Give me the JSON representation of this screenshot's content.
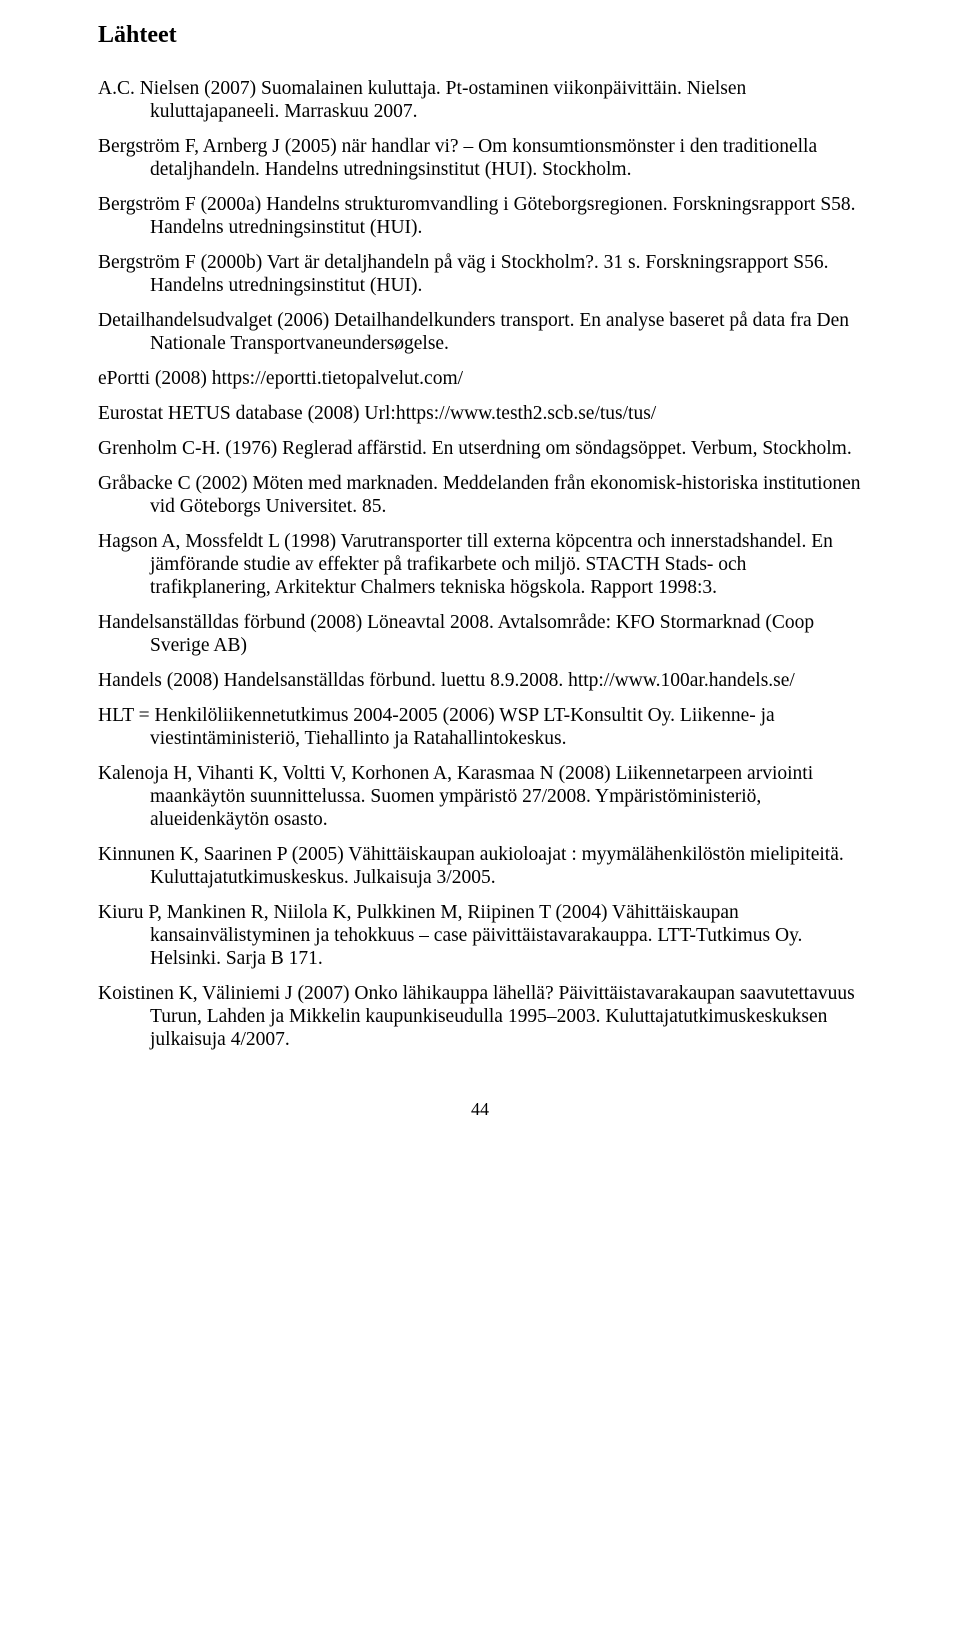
{
  "heading": "Lähteet",
  "page_number": "44",
  "refs": [
    "A.C. Nielsen (2007) Suomalainen kuluttaja. Pt-ostaminen viikonpäivittäin. Nielsen kuluttajapaneeli. Marraskuu 2007.",
    "Bergström F, Arnberg J (2005) när handlar vi? – Om konsumtionsmönster i den traditionella detaljhandeln. Handelns utredningsinstitut (HUI). Stockholm.",
    "Bergström F (2000a) Handelns strukturomvandling i Göteborgsregionen. Forskningsrapport S58. Handelns utredningsinstitut (HUI).",
    "Bergström F (2000b) Vart är detaljhandeln på väg i Stockholm?. 31 s. Forskningsrapport S56. Handelns utredningsinstitut (HUI).",
    "Detailhandelsudvalget (2006) Detailhandelkunders transport. En analyse baseret på data fra Den Nationale Transportvaneundersøgelse.",
    "ePortti (2008) https://eportti.tietopalvelut.com/",
    "Eurostat HETUS database (2008) Url:https://www.testh2.scb.se/tus/tus/",
    "Grenholm C-H. (1976) Reglerad affärstid. En utserdning om söndagsöppet. Verbum, Stockholm.",
    "Gråbacke C (2002) Möten med marknaden. Meddelanden från ekonomisk-historiska institutionen vid Göteborgs Universitet. 85.",
    "Hagson A, Mossfeldt L (1998) Varutransporter till externa köpcentra och innerstadshandel. En jämförande studie av effekter på trafikarbete och miljö. STACTH Stads- och trafikplanering, Arkitektur Chalmers tekniska högskola. Rapport 1998:3.",
    "Handelsanställdas förbund (2008) Löneavtal 2008. Avtalsområde: KFO Stormarknad (Coop Sverige AB)",
    "Handels (2008) Handelsanställdas förbund. luettu 8.9.2008. http://www.100ar.handels.se/",
    "HLT = Henkilöliikennetutkimus 2004-2005 (2006) WSP LT-Konsultit Oy. Liikenne- ja viestintäministeriö, Tiehallinto ja Ratahallintokeskus.",
    "Kalenoja H, Vihanti K, Voltti V, Korhonen A, Karasmaa N (2008) Liikennetarpeen arviointi maankäytön suunnittelussa. Suomen ympäristö 27/2008. Ympäristöministeriö, alueidenkäytön osasto.",
    "Kinnunen K, Saarinen P (2005) Vähittäiskaupan aukioloajat : myymälähenkilöstön mielipiteitä. Kuluttajatutkimuskeskus. Julkaisuja 3/2005.",
    "Kiuru P, Mankinen R, Niilola K, Pulkkinen M, Riipinen T (2004) Vähittäiskaupan kansainvälistyminen ja tehokkuus – case päivittäistavarakauppa. LTT-Tutkimus Oy. Helsinki. Sarja B 171.",
    "Koistinen K, Väliniemi J (2007) Onko lähikauppa lähellä? Päivittäistavarakaupan saavutettavuus Turun, Lahden ja Mikkelin kaupunkiseudulla 1995–2003. Kuluttajatutkimuskeskuksen julkaisuja 4/2007."
  ]
}
